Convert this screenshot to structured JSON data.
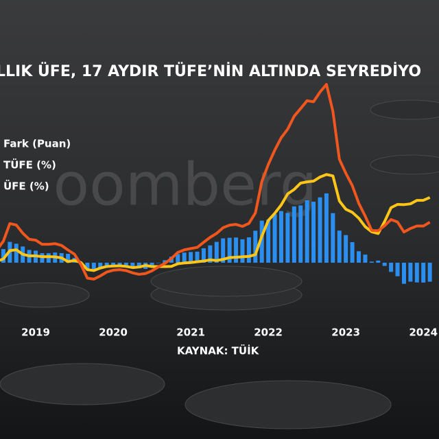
{
  "chart_data": {
    "type": "bar-line",
    "title": "LLIK ÜFE, 17 AYDIR TÜFE’NİN ALTINDA SEYREDİYO",
    "source": "KAYNAK: TÜİK",
    "watermark": "oomberg",
    "categories": [
      null,
      null,
      null,
      null,
      null,
      null,
      "2019",
      null,
      null,
      null,
      null,
      null,
      null,
      null,
      null,
      null,
      null,
      null,
      "2020",
      null,
      null,
      null,
      null,
      null,
      null,
      null,
      null,
      null,
      null,
      null,
      "2021",
      null,
      null,
      null,
      null,
      null,
      null,
      null,
      null,
      null,
      null,
      null,
      "2022",
      null,
      null,
      null,
      null,
      null,
      null,
      null,
      null,
      null,
      null,
      null,
      "2023",
      null,
      null,
      null,
      null,
      null,
      null,
      null,
      null,
      null,
      null,
      null,
      "2024",
      null
    ],
    "series": [
      {
        "name": "Fark (Puan)",
        "type": "bar",
        "color": "#2a8ff0",
        "values": [
          9.15,
          14.2,
          21.7,
          19.8,
          16.9,
          13.3,
          12.55,
          9.93,
          9.89,
          10.6,
          9.99,
          9.28,
          5.05,
          -1.56,
          -6.81,
          -6.85,
          -6.3,
          -4.48,
          -3.31,
          -3.11,
          -3.36,
          -4.23,
          -5.86,
          -6.45,
          -3.43,
          -0.24,
          2.58,
          6.31,
          9.08,
          10.55,
          11.19,
          11.48,
          15.01,
          18.03,
          21.74,
          25.36,
          25.97,
          26.27,
          24.38,
          26.42,
          33.31,
          43.81,
          44.84,
          50.57,
          53.83,
          51.85,
          58.66,
          59.69,
          65.01,
          63.54,
          68.05,
          72.18,
          51.63,
          33.45,
          28.78,
          21.43,
          11.94,
          8.43,
          1.17,
          2.21,
          -3.33,
          -9.53,
          -14.09,
          -21.97,
          -19.73,
          -20.55,
          -20.66,
          -19.78
        ]
      },
      {
        "name": "TÜFE (%)",
        "type": "line",
        "color": "#ffc61a",
        "values": [
          15.85,
          17.9,
          24.5,
          25.2,
          21.6,
          20.3,
          20.35,
          19.67,
          19.71,
          19.5,
          18.71,
          15.72,
          16.65,
          15.01,
          9.26,
          8.55,
          10.56,
          11.84,
          12.15,
          12.37,
          11.86,
          10.94,
          11.39,
          12.62,
          11.76,
          11.77,
          11.75,
          11.89,
          14.03,
          14.6,
          14.97,
          15.61,
          16.19,
          17.14,
          16.59,
          17.53,
          18.95,
          19.25,
          19.58,
          19.89,
          21.31,
          36.08,
          48.69,
          54.44,
          61.14,
          69.97,
          73.5,
          78.62,
          79.6,
          80.21,
          83.45,
          85.51,
          84.39,
          64.27,
          57.68,
          55.18,
          50.51,
          43.68,
          39.59,
          38.21,
          47.83,
          58.94,
          61.53,
          61.36,
          61.98,
          64.77,
          64.86,
          67.07
        ]
      },
      {
        "name": "ÜFE (%)",
        "type": "line",
        "color": "#f0571e",
        "values": [
          25.0,
          32.1,
          46.2,
          45.0,
          38.5,
          33.6,
          32.9,
          29.6,
          29.6,
          30.1,
          28.7,
          25.0,
          21.7,
          13.45,
          2.45,
          1.7,
          4.26,
          7.36,
          8.84,
          9.26,
          8.5,
          6.71,
          5.53,
          6.17,
          8.33,
          11.53,
          14.33,
          18.2,
          23.11,
          25.15,
          26.16,
          27.09,
          31.2,
          35.17,
          38.33,
          42.89,
          44.92,
          45.52,
          43.96,
          46.31,
          54.62,
          79.89,
          93.53,
          105.01,
          114.97,
          121.82,
          132.16,
          138.31,
          144.61,
          143.75,
          151.5,
          157.69,
          136.02,
          97.72,
          86.46,
          76.61,
          62.45,
          52.11,
          40.76,
          40.42,
          44.5,
          49.41,
          47.44,
          39.39,
          42.25,
          44.22,
          44.2,
          47.29
        ]
      }
    ]
  }
}
